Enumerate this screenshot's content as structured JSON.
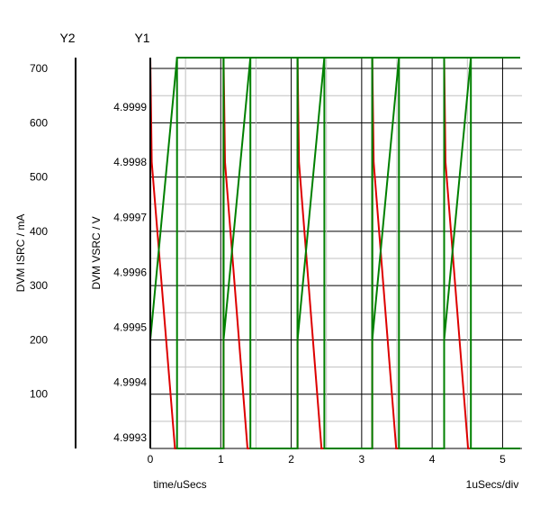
{
  "chart_data": {
    "type": "line",
    "y2_title": "Y2",
    "y1_title": "Y1",
    "y2_label": "DVM ISRC / mA",
    "y1_label": "DVM VSRC / V",
    "xlabel": "time/uSecs",
    "x_scale_label": "1uSecs/div",
    "x_ticks": [
      "0",
      "1",
      "2",
      "3",
      "4",
      "5"
    ],
    "y2_ticks": [
      "700",
      "600",
      "500",
      "400",
      "300",
      "200",
      "100"
    ],
    "y1_ticks": [
      "4.9999",
      "4.9998",
      "4.9997",
      "4.9996",
      "4.9995",
      "4.9994",
      "4.9993"
    ],
    "xlim": [
      0,
      5.25
    ],
    "y1lim": [
      4.99928,
      4.99999
    ],
    "y2lim": [
      0,
      720
    ],
    "colors": {
      "vsrc": "#dd0000",
      "isrc": "#008000",
      "major_grid": "#000000",
      "minor_grid": "#c0c0c0",
      "axis": "#000000"
    },
    "series": [
      {
        "name": "DVM VSRC",
        "axis": "y1",
        "color": "#dd0000",
        "x": [
          0,
          0,
          0.02,
          0.35,
          1.04,
          1.04,
          1.06,
          1.38,
          2.09,
          2.09,
          2.11,
          2.43,
          3.15,
          3.15,
          3.17,
          3.49,
          4.17,
          4.17,
          4.19,
          4.51,
          5.25
        ],
        "y": [
          4.99928,
          4.99999,
          4.9998,
          4.99928,
          4.99928,
          4.99999,
          4.9998,
          4.99928,
          4.99928,
          4.99999,
          4.9998,
          4.99928,
          4.99928,
          4.99999,
          4.9998,
          4.99928,
          4.99928,
          4.99999,
          4.9998,
          4.99928,
          4.99928
        ]
      },
      {
        "name": "DVM ISRC",
        "axis": "y2",
        "color": "#008000",
        "x": [
          0,
          0,
          0.38,
          1.04,
          1.04,
          1.42,
          2.09,
          2.09,
          2.47,
          3.15,
          3.15,
          3.53,
          4.17,
          4.17,
          4.55,
          5.25
        ],
        "y": [
          720,
          200,
          720,
          720,
          200,
          720,
          720,
          200,
          720,
          720,
          200,
          720,
          720,
          200,
          720,
          720
        ]
      },
      {
        "name": "DVM ISRC",
        "axis": "y2",
        "color": "#008000",
        "x": [
          0.38,
          0.38,
          1.04,
          1.04,
          1.42,
          1.42,
          2.09,
          2.09,
          2.47,
          2.47,
          3.15,
          3.15,
          3.53,
          3.53,
          4.17,
          4.17,
          4.55,
          4.55,
          5.25
        ],
        "y": [
          720,
          0,
          0,
          720,
          720,
          0,
          0,
          720,
          720,
          0,
          0,
          720,
          720,
          0,
          0,
          720,
          720,
          0,
          0
        ]
      }
    ]
  }
}
